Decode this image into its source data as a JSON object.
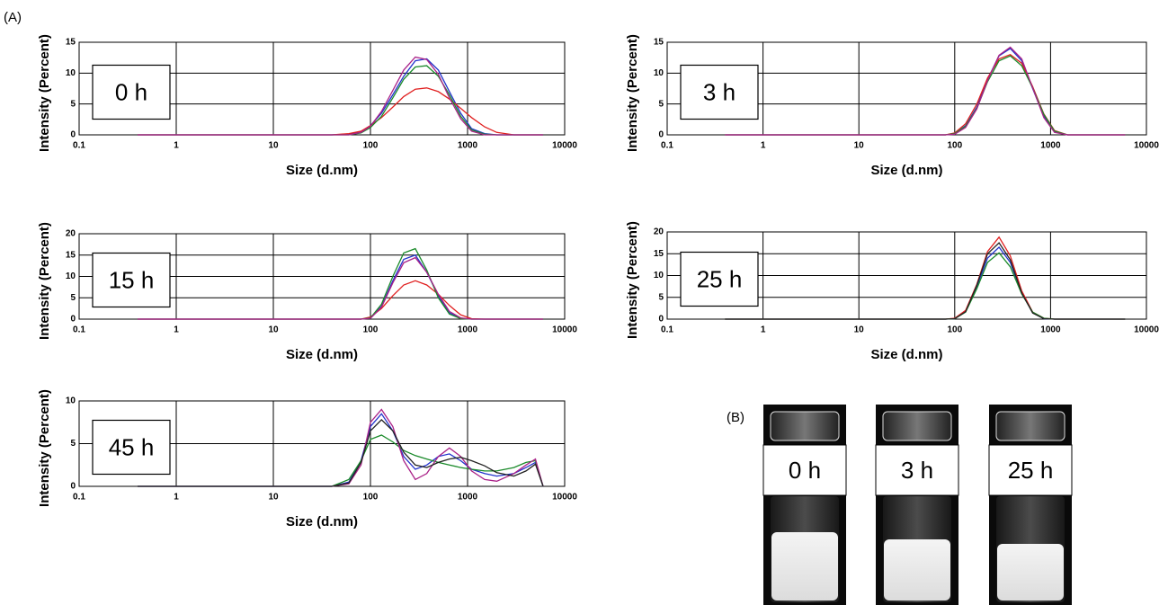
{
  "panel_label": "(A)",
  "photos": {
    "label": "(B)",
    "items": [
      "0 h",
      "3 h",
      "25 h"
    ]
  },
  "chart_data": [
    {
      "type": "line",
      "annotation": "0 h",
      "x_label": "Size (d.nm)",
      "y_label": "Intensity (Percent)",
      "log_x": true,
      "grid": true,
      "xlim": [
        0.1,
        10000
      ],
      "xticks": [
        0.1,
        1,
        10,
        100,
        1000,
        10000
      ],
      "ylim": [
        0,
        15
      ],
      "yticks": [
        0,
        5,
        10,
        15
      ],
      "x": [
        0.4,
        1,
        10,
        40,
        60,
        80,
        100,
        130,
        170,
        220,
        290,
        380,
        500,
        650,
        850,
        1100,
        1500,
        2000,
        3000,
        4000,
        5000,
        6000
      ],
      "series": [
        {
          "color": "#2233cc",
          "values": [
            0,
            0,
            0,
            0,
            0.1,
            0.5,
            1.5,
            3.5,
            6.5,
            9.5,
            12,
            12.3,
            10.5,
            7,
            3.5,
            1,
            0.2,
            0,
            0,
            0,
            0,
            0
          ]
        },
        {
          "color": "#e02020",
          "values": [
            0,
            0,
            0,
            0,
            0.2,
            0.6,
            1.5,
            2.8,
            4.5,
            6.2,
            7.4,
            7.6,
            7,
            5.8,
            4.3,
            2.8,
            1.3,
            0.4,
            0,
            0,
            0,
            0
          ]
        },
        {
          "color": "#1a8a2a",
          "values": [
            0,
            0,
            0,
            0,
            0,
            0.3,
            1.2,
            3,
            6,
            9,
            11,
            11.2,
            9.5,
            6.5,
            3,
            0.8,
            0.1,
            0,
            0,
            0,
            0,
            0
          ]
        },
        {
          "color": "#aa2288",
          "values": [
            0,
            0,
            0,
            0,
            0,
            0.4,
            1.4,
            3.8,
            7.2,
            10.5,
            12.6,
            12.2,
            9.8,
            6,
            2.6,
            0.6,
            0,
            0,
            0,
            0,
            0,
            0
          ]
        }
      ]
    },
    {
      "type": "line",
      "annotation": "3 h",
      "x_label": "Size (d.nm)",
      "y_label": "Intensity (Percent)",
      "log_x": true,
      "grid": true,
      "xlim": [
        0.1,
        10000
      ],
      "xticks": [
        0.1,
        1,
        10,
        100,
        1000,
        10000
      ],
      "ylim": [
        0,
        15
      ],
      "yticks": [
        0,
        5,
        10,
        15
      ],
      "x": [
        0.4,
        1,
        10,
        40,
        60,
        80,
        100,
        130,
        170,
        220,
        290,
        380,
        500,
        650,
        850,
        1100,
        1500,
        2000,
        3000,
        4000,
        5000,
        6000
      ],
      "series": [
        {
          "color": "#2233cc",
          "values": [
            0,
            0,
            0,
            0,
            0,
            0,
            0.2,
            1.5,
            4.5,
            9,
            12.8,
            14,
            12,
            7.5,
            3,
            0.5,
            0,
            0,
            0,
            0,
            0,
            0
          ]
        },
        {
          "color": "#e02020",
          "values": [
            0,
            0,
            0,
            0,
            0,
            0,
            0.3,
            1.8,
            5,
            9.2,
            12.3,
            13,
            11.6,
            7.8,
            3.4,
            0.7,
            0,
            0,
            0,
            0,
            0,
            0
          ]
        },
        {
          "color": "#1a8a2a",
          "values": [
            0,
            0,
            0,
            0,
            0,
            0,
            0.2,
            1.4,
            4.3,
            8.6,
            12,
            12.8,
            11.2,
            7.6,
            3.3,
            0.6,
            0,
            0,
            0,
            0,
            0,
            0
          ]
        },
        {
          "color": "#aa2288",
          "values": [
            0,
            0,
            0,
            0,
            0,
            0,
            0.1,
            1.2,
            4.2,
            8.8,
            12.9,
            14.2,
            12.3,
            7.6,
            2.8,
            0.4,
            0,
            0,
            0,
            0,
            0,
            0
          ]
        }
      ]
    },
    {
      "type": "line",
      "annotation": "15 h",
      "x_label": "Size (d.nm)",
      "y_label": "Intensity (Percent)",
      "log_x": true,
      "grid": true,
      "xlim": [
        0.1,
        10000
      ],
      "xticks": [
        0.1,
        1,
        10,
        100,
        1000,
        10000
      ],
      "ylim": [
        0,
        20
      ],
      "yticks": [
        0,
        5,
        10,
        15,
        20
      ],
      "x": [
        0.4,
        1,
        10,
        40,
        60,
        80,
        100,
        130,
        170,
        220,
        290,
        380,
        500,
        650,
        850,
        1100,
        1500,
        2000,
        3000,
        4000,
        5000,
        6000
      ],
      "series": [
        {
          "color": "#2233cc",
          "values": [
            0,
            0,
            0,
            0,
            0,
            0,
            0.3,
            3,
            9,
            14,
            15,
            11,
            5.5,
            1.5,
            0.2,
            0,
            0,
            0,
            0,
            0,
            0,
            0
          ]
        },
        {
          "color": "#e02020",
          "values": [
            0,
            0,
            0,
            0,
            0,
            0,
            0.5,
            2.5,
            5.5,
            8,
            9,
            8,
            5.8,
            3.2,
            1,
            0.1,
            0,
            0,
            0,
            0,
            0,
            0
          ]
        },
        {
          "color": "#1a8a2a",
          "values": [
            0,
            0,
            0,
            0,
            0,
            0,
            0.3,
            3.5,
            10,
            15.5,
            16.5,
            11.5,
            5,
            1.2,
            0.1,
            0,
            0,
            0,
            0,
            0,
            0,
            0
          ]
        },
        {
          "color": "#aa2288",
          "values": [
            0,
            0,
            0,
            0,
            0,
            0,
            0.2,
            2.8,
            8.5,
            13.2,
            14.4,
            11,
            5.8,
            1.8,
            0.3,
            0,
            0,
            0,
            0,
            0,
            0,
            0
          ]
        }
      ]
    },
    {
      "type": "line",
      "annotation": "25 h",
      "x_label": "Size (d.nm)",
      "y_label": "Intensity (Percent)",
      "log_x": true,
      "grid": true,
      "xlim": [
        0.1,
        10000
      ],
      "xticks": [
        0.1,
        1,
        10,
        100,
        1000,
        10000
      ],
      "ylim": [
        0,
        20
      ],
      "yticks": [
        0,
        5,
        10,
        15,
        20
      ],
      "x": [
        0.4,
        1,
        10,
        40,
        60,
        80,
        100,
        130,
        170,
        220,
        290,
        380,
        500,
        650,
        850,
        1100,
        1500,
        2000,
        3000,
        4000,
        5000,
        6000
      ],
      "series": [
        {
          "color": "#2233cc",
          "values": [
            0,
            0,
            0,
            0,
            0,
            0,
            0.1,
            1.8,
            7.5,
            14,
            16.5,
            13,
            6,
            1.5,
            0.1,
            0,
            0,
            0,
            0,
            0,
            0,
            0
          ]
        },
        {
          "color": "#e02020",
          "values": [
            0,
            0,
            0,
            0,
            0,
            0,
            0.2,
            2,
            8,
            15.5,
            18.8,
            14.5,
            6.5,
            1.6,
            0.2,
            0,
            0,
            0,
            0,
            0,
            0,
            0
          ]
        },
        {
          "color": "#1a8a2a",
          "values": [
            0,
            0,
            0,
            0,
            0,
            0,
            0.1,
            1.6,
            7,
            13,
            15.2,
            12,
            5.8,
            1.6,
            0.2,
            0,
            0,
            0,
            0,
            0,
            0,
            0
          ]
        },
        {
          "color": "#222222",
          "values": [
            0,
            0,
            0,
            0,
            0,
            0,
            0.1,
            1.7,
            7.8,
            15,
            17.5,
            13.6,
            6,
            1.4,
            0.1,
            0,
            0,
            0,
            0,
            0,
            0,
            0
          ]
        }
      ]
    },
    {
      "type": "line",
      "annotation": "45 h",
      "x_label": "Size (d.nm)",
      "y_label": "Intensity (Percent)",
      "log_x": true,
      "grid": true,
      "xlim": [
        0.1,
        10000
      ],
      "xticks": [
        0.1,
        1,
        10,
        100,
        1000,
        10000
      ],
      "ylim": [
        0,
        10
      ],
      "yticks": [
        0,
        5,
        10
      ],
      "x": [
        0.4,
        1,
        10,
        40,
        60,
        80,
        100,
        130,
        170,
        220,
        290,
        380,
        500,
        650,
        850,
        1100,
        1500,
        2000,
        3000,
        4000,
        5000,
        6000
      ],
      "series": [
        {
          "color": "#2233cc",
          "values": [
            0,
            0,
            0,
            0,
            0.5,
            3,
            7,
            8.5,
            6.5,
            3.5,
            2,
            2.5,
            3.5,
            3.8,
            3,
            2,
            1.5,
            1.2,
            1.5,
            2.2,
            2.8,
            0
          ]
        },
        {
          "color": "#1a8a2a",
          "values": [
            0,
            0,
            0,
            0,
            0.8,
            3,
            5.5,
            6,
            5.2,
            4.2,
            3.6,
            3.2,
            2.8,
            2.5,
            2.2,
            2,
            1.8,
            1.8,
            2.2,
            2.8,
            3,
            0
          ]
        },
        {
          "color": "#aa2288",
          "values": [
            0,
            0,
            0,
            0,
            0.3,
            2.5,
            7.5,
            9,
            7,
            3,
            0.8,
            1.5,
            3.5,
            4.5,
            3.5,
            1.8,
            0.8,
            0.6,
            1.5,
            2.5,
            3.2,
            0
          ]
        },
        {
          "color": "#222222",
          "values": [
            0,
            0,
            0,
            0,
            0.4,
            2.8,
            6.5,
            7.8,
            6.5,
            4,
            2.5,
            2.2,
            2.8,
            3.2,
            3.4,
            3,
            2.4,
            1.6,
            1.2,
            1.8,
            2.6,
            0
          ]
        }
      ]
    }
  ]
}
